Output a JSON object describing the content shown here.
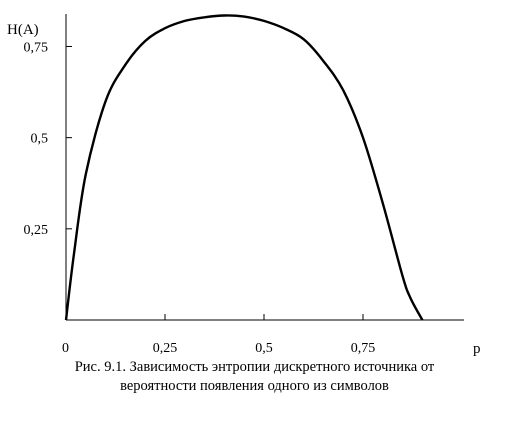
{
  "chart_data": {
    "type": "line",
    "title": "",
    "xlabel": "p",
    "ylabel": "H(A)",
    "xlim": [
      0,
      1
    ],
    "ylim": [
      0,
      0.85
    ],
    "x_ticks": [
      0,
      0.25,
      0.5,
      0.75
    ],
    "x_tick_labels": [
      "0",
      "0,25",
      "0,5",
      "0,75"
    ],
    "y_ticks": [
      0.25,
      0.5,
      0.75
    ],
    "y_tick_labels": [
      "0,25",
      "0,5",
      "0,75"
    ],
    "grid": false,
    "legend": "none",
    "series": [
      {
        "x": [
          0,
          0.02,
          0.05,
          0.1,
          0.15,
          0.2,
          0.25,
          0.3,
          0.35,
          0.4,
          0.45,
          0.5,
          0.55,
          0.6,
          0.65,
          0.7,
          0.75,
          0.8,
          0.85,
          0.87,
          0.9
        ],
        "y": [
          0,
          0.18,
          0.4,
          0.6,
          0.7,
          0.765,
          0.8,
          0.82,
          0.83,
          0.835,
          0.832,
          0.82,
          0.8,
          0.77,
          0.71,
          0.63,
          0.5,
          0.32,
          0.12,
          0.06,
          0
        ]
      }
    ],
    "caption": [
      "Рис. 9.1. Зависимость энтропии дискретного источника от",
      "вероятности появления одного из символов"
    ]
  }
}
